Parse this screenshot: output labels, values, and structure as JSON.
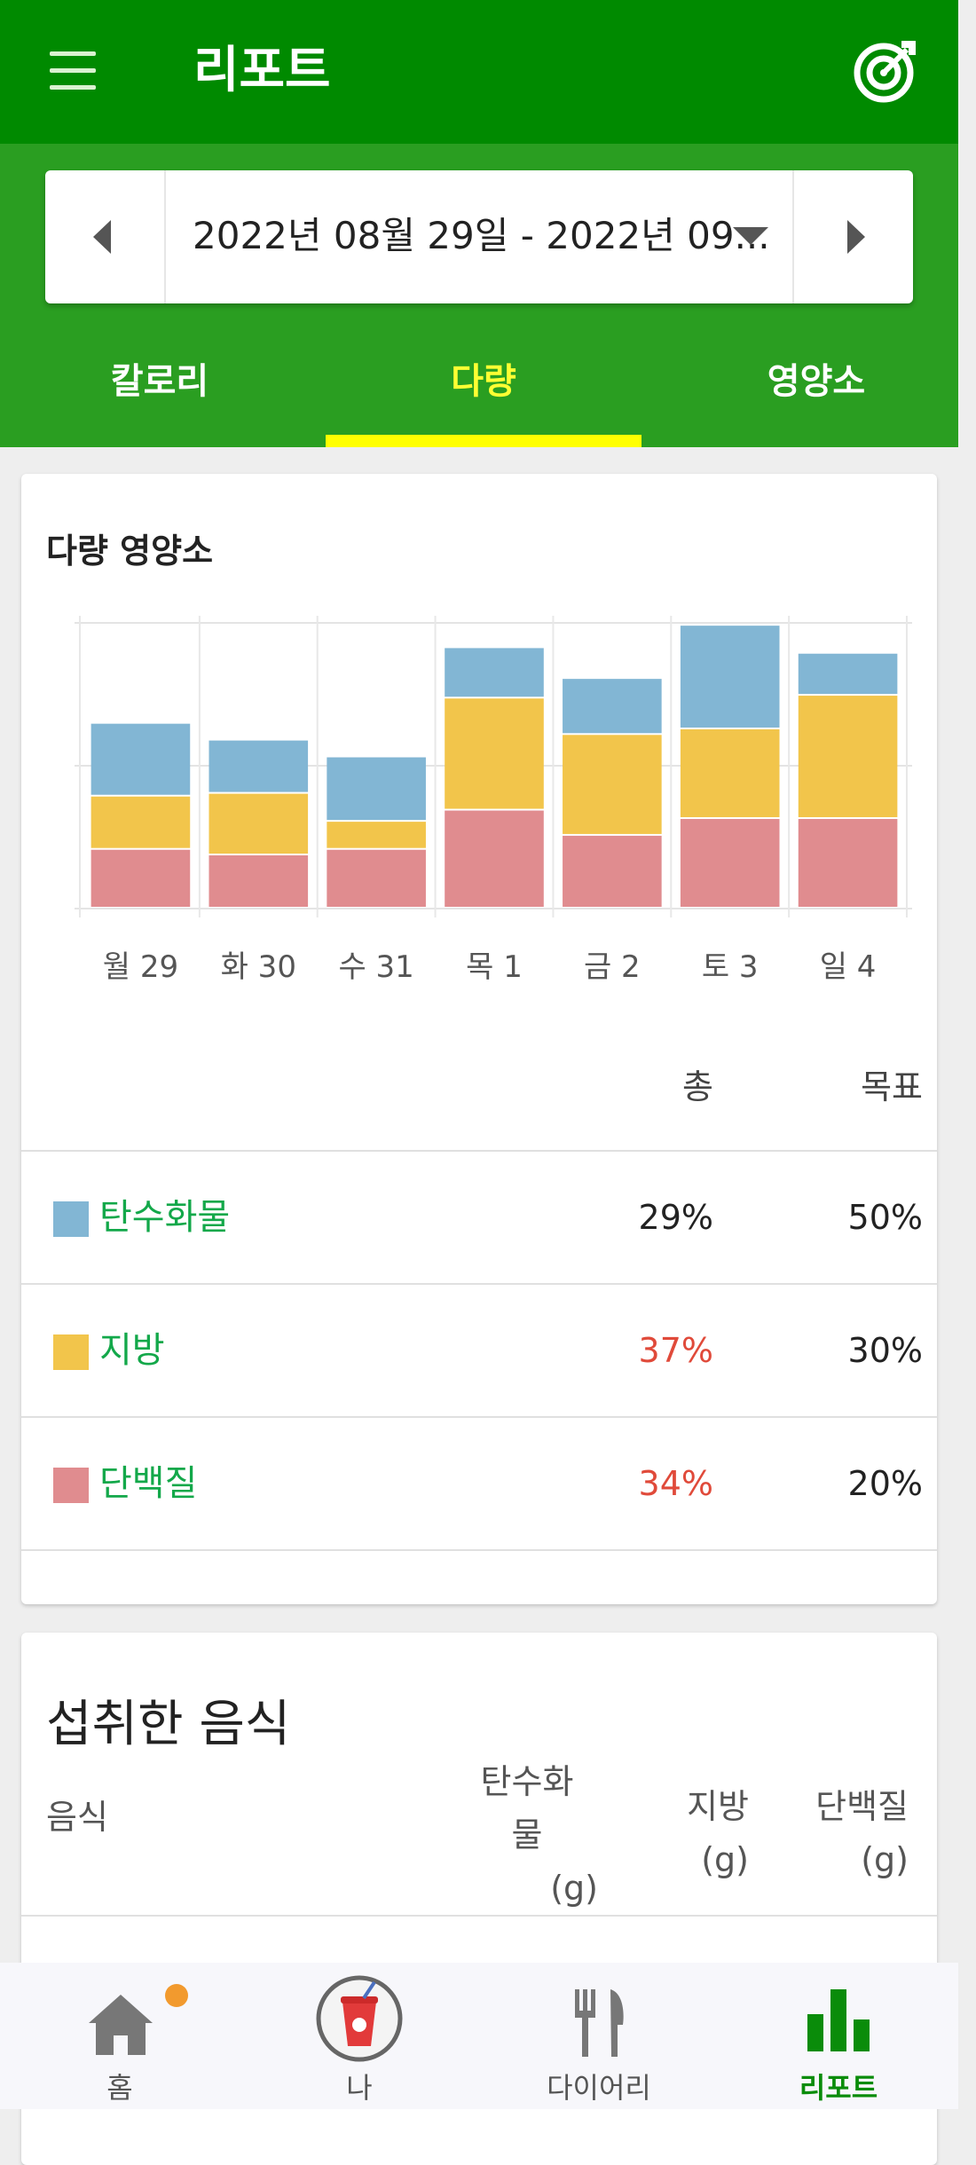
{
  "header": {
    "title": "리포트",
    "menu_icon": "hamburger-menu-icon",
    "goal_icon": "target-icon"
  },
  "date_range": {
    "text": "2022년 08월 29일 - 2022년 09..."
  },
  "tabs": [
    {
      "label": "칼로리",
      "active": false
    },
    {
      "label": "다량",
      "active": true
    },
    {
      "label": "영양소",
      "active": false
    }
  ],
  "macro_card": {
    "title": "다량 영양소",
    "columns": {
      "total": "총",
      "goal": "목표"
    },
    "rows": [
      {
        "name": "탄수화물",
        "color": "#82b6d4",
        "total": "29%",
        "goal": "50%",
        "total_color": "#222222"
      },
      {
        "name": "지방",
        "color": "#f2c54b",
        "total": "37%",
        "goal": "30%",
        "total_color": "#e04a3a"
      },
      {
        "name": "단백질",
        "color": "#e08c8f",
        "total": "34%",
        "goal": "20%",
        "total_color": "#e04a3a"
      }
    ]
  },
  "chart_data": {
    "type": "bar",
    "stacked": true,
    "categories": [
      "월 29",
      "화 30",
      "수 31",
      "목 1",
      "금 2",
      "토 3",
      "일 4"
    ],
    "series": [
      {
        "name": "단백질",
        "color": "#e08c8f",
        "values": [
          21,
          19,
          21,
          35,
          26,
          32,
          32
        ]
      },
      {
        "name": "지방",
        "color": "#f2c54b",
        "values": [
          19,
          22,
          10,
          40,
          36,
          32,
          44
        ]
      },
      {
        "name": "탄수화물",
        "color": "#82b6d4",
        "values": [
          26,
          19,
          23,
          18,
          20,
          37,
          15
        ]
      }
    ],
    "ylim": [
      0,
      102
    ],
    "grid": true
  },
  "food_card": {
    "title": "섭취한 음식",
    "col_food": "음식",
    "col_carbs": [
      "탄수화",
      "물",
      "(g)"
    ],
    "col_fat": [
      "지방",
      "(g)"
    ],
    "col_protein": [
      "단백질",
      "(g)"
    ]
  },
  "bottom_nav": [
    {
      "label": "홈",
      "icon": "home-icon",
      "active": false,
      "badge": true
    },
    {
      "label": "나",
      "icon": "profile-avatar-icon",
      "active": false
    },
    {
      "label": "다이어리",
      "icon": "fork-knife-icon",
      "active": false
    },
    {
      "label": "리포트",
      "icon": "bar-chart-icon",
      "active": true
    }
  ]
}
